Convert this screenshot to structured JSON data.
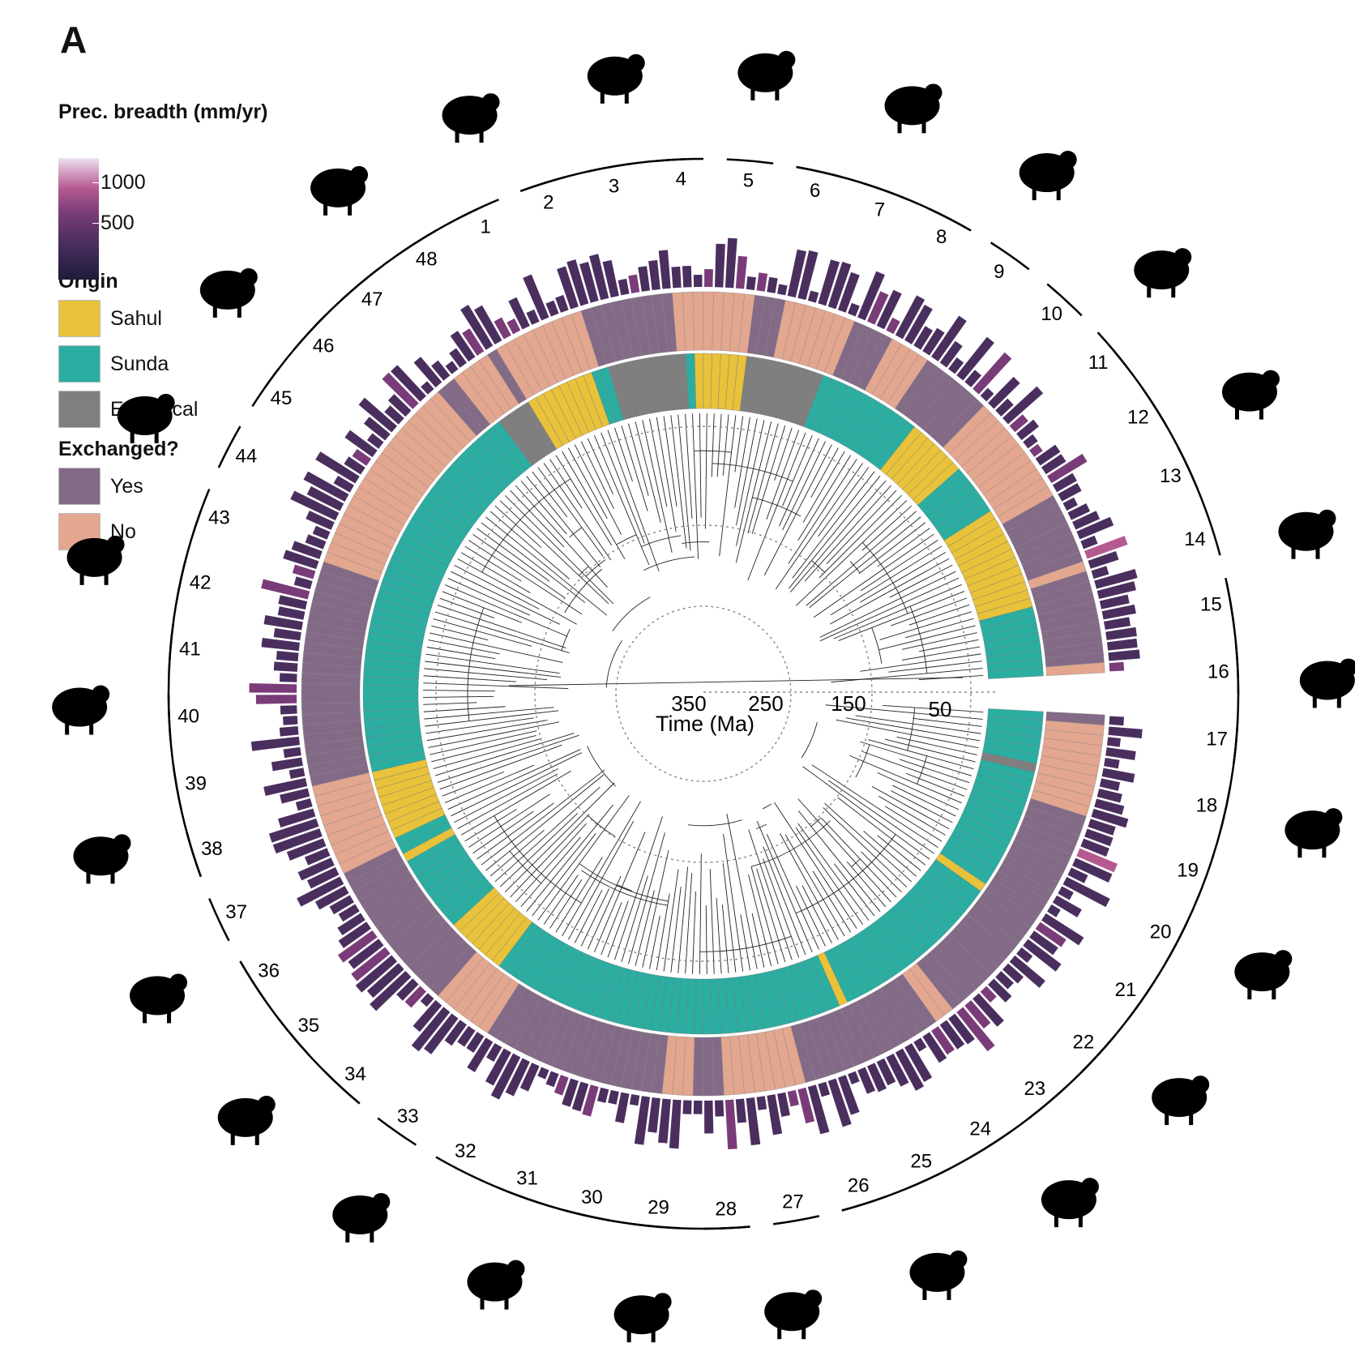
{
  "panel_letter": "A",
  "legend": {
    "precip": {
      "title": "Prec. breadth (mm/yr)",
      "ticks": [
        "1000",
        "500"
      ],
      "colormap": [
        "#1f1a3a",
        "#4a2f5e",
        "#7a3c78",
        "#b55a90",
        "#d8a8c8",
        "#ece4f0"
      ]
    },
    "origin": {
      "title": "Origin",
      "items": [
        {
          "label": "Sahul",
          "color": "#e8c23a"
        },
        {
          "label": "Sunda",
          "color": "#2aaea2"
        },
        {
          "label": "Equivocal",
          "color": "#7f7f7f"
        }
      ]
    },
    "exchanged": {
      "title": "Exchanged?",
      "items": [
        {
          "label": "Yes",
          "color": "#836a86"
        },
        {
          "label": "No",
          "color": "#e3a68f"
        }
      ]
    }
  },
  "axis": {
    "label": "Time (Ma)",
    "ticks": [
      "350",
      "250",
      "150",
      "50"
    ]
  },
  "clade_labels": [
    "1",
    "2",
    "3",
    "4",
    "5",
    "6",
    "7",
    "8",
    "9",
    "10",
    "11",
    "12",
    "13",
    "14",
    "15",
    "16",
    "17",
    "18",
    "19",
    "20",
    "21",
    "22",
    "23",
    "24",
    "25",
    "26",
    "27",
    "28",
    "29",
    "30",
    "31",
    "32",
    "33",
    "34",
    "35",
    "36",
    "37",
    "38",
    "39",
    "40",
    "41",
    "42",
    "43",
    "44",
    "45",
    "46",
    "47",
    "48"
  ],
  "silhouettes": [
    "tiger-silhouette",
    "rhino-silhouette",
    "bat-silhouette",
    "gibbon-silhouette",
    "possum-silhouette",
    "mouse-silhouette",
    "elephant-silhouette",
    "kangaroo-silhouette",
    "bandicoot-silhouette",
    "platypus-silhouette",
    "frog-silhouette",
    "lizard-silhouette",
    "snake-silhouette",
    "songbird-silhouette",
    "cockatoo-silhouette",
    "kingfisher-silhouette",
    "hornbill-silhouette",
    "owl-silhouette",
    "stilt-silhouette",
    "cuckoo-silhouette",
    "pelican-silhouette",
    "penguin-silhouette",
    "dove-silhouette",
    "pigeon-silhouette",
    "duck-silhouette",
    "gecko-silhouette"
  ]
}
